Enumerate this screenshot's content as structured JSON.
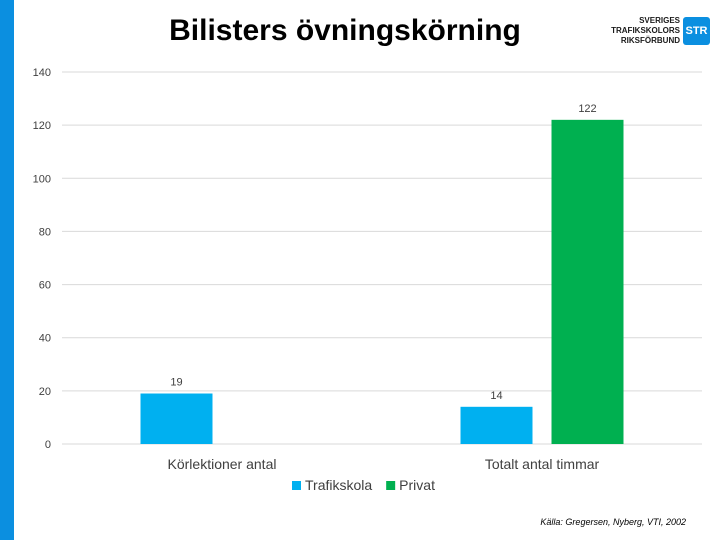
{
  "slide": {
    "title": "Bilisters övningskörning",
    "source": "Källa: Gregersen, Nyberg, VTI, 2002"
  },
  "logo": {
    "line1": "SVERIGES",
    "line2": "TRAFIKSKOLORS",
    "line3": "RIKSFÖRBUND",
    "badge": "STR"
  },
  "colors": {
    "accent": "#0b8fe0",
    "trafikskola": "#00b0f0",
    "privat": "#00b050",
    "grid": "#d9d9d9",
    "axis_text": "#404040"
  },
  "chart_data": {
    "type": "bar",
    "categories": [
      "Körlektioner  antal",
      "Totalt antal timmar"
    ],
    "series": [
      {
        "name": "Trafikskola",
        "values": [
          19,
          14
        ]
      },
      {
        "name": "Privat",
        "values": [
          null,
          122
        ]
      }
    ],
    "ylim": [
      0,
      140
    ],
    "yticks": [
      0,
      20,
      40,
      60,
      80,
      100,
      120,
      140
    ],
    "grid": true,
    "legend": "bottom"
  }
}
